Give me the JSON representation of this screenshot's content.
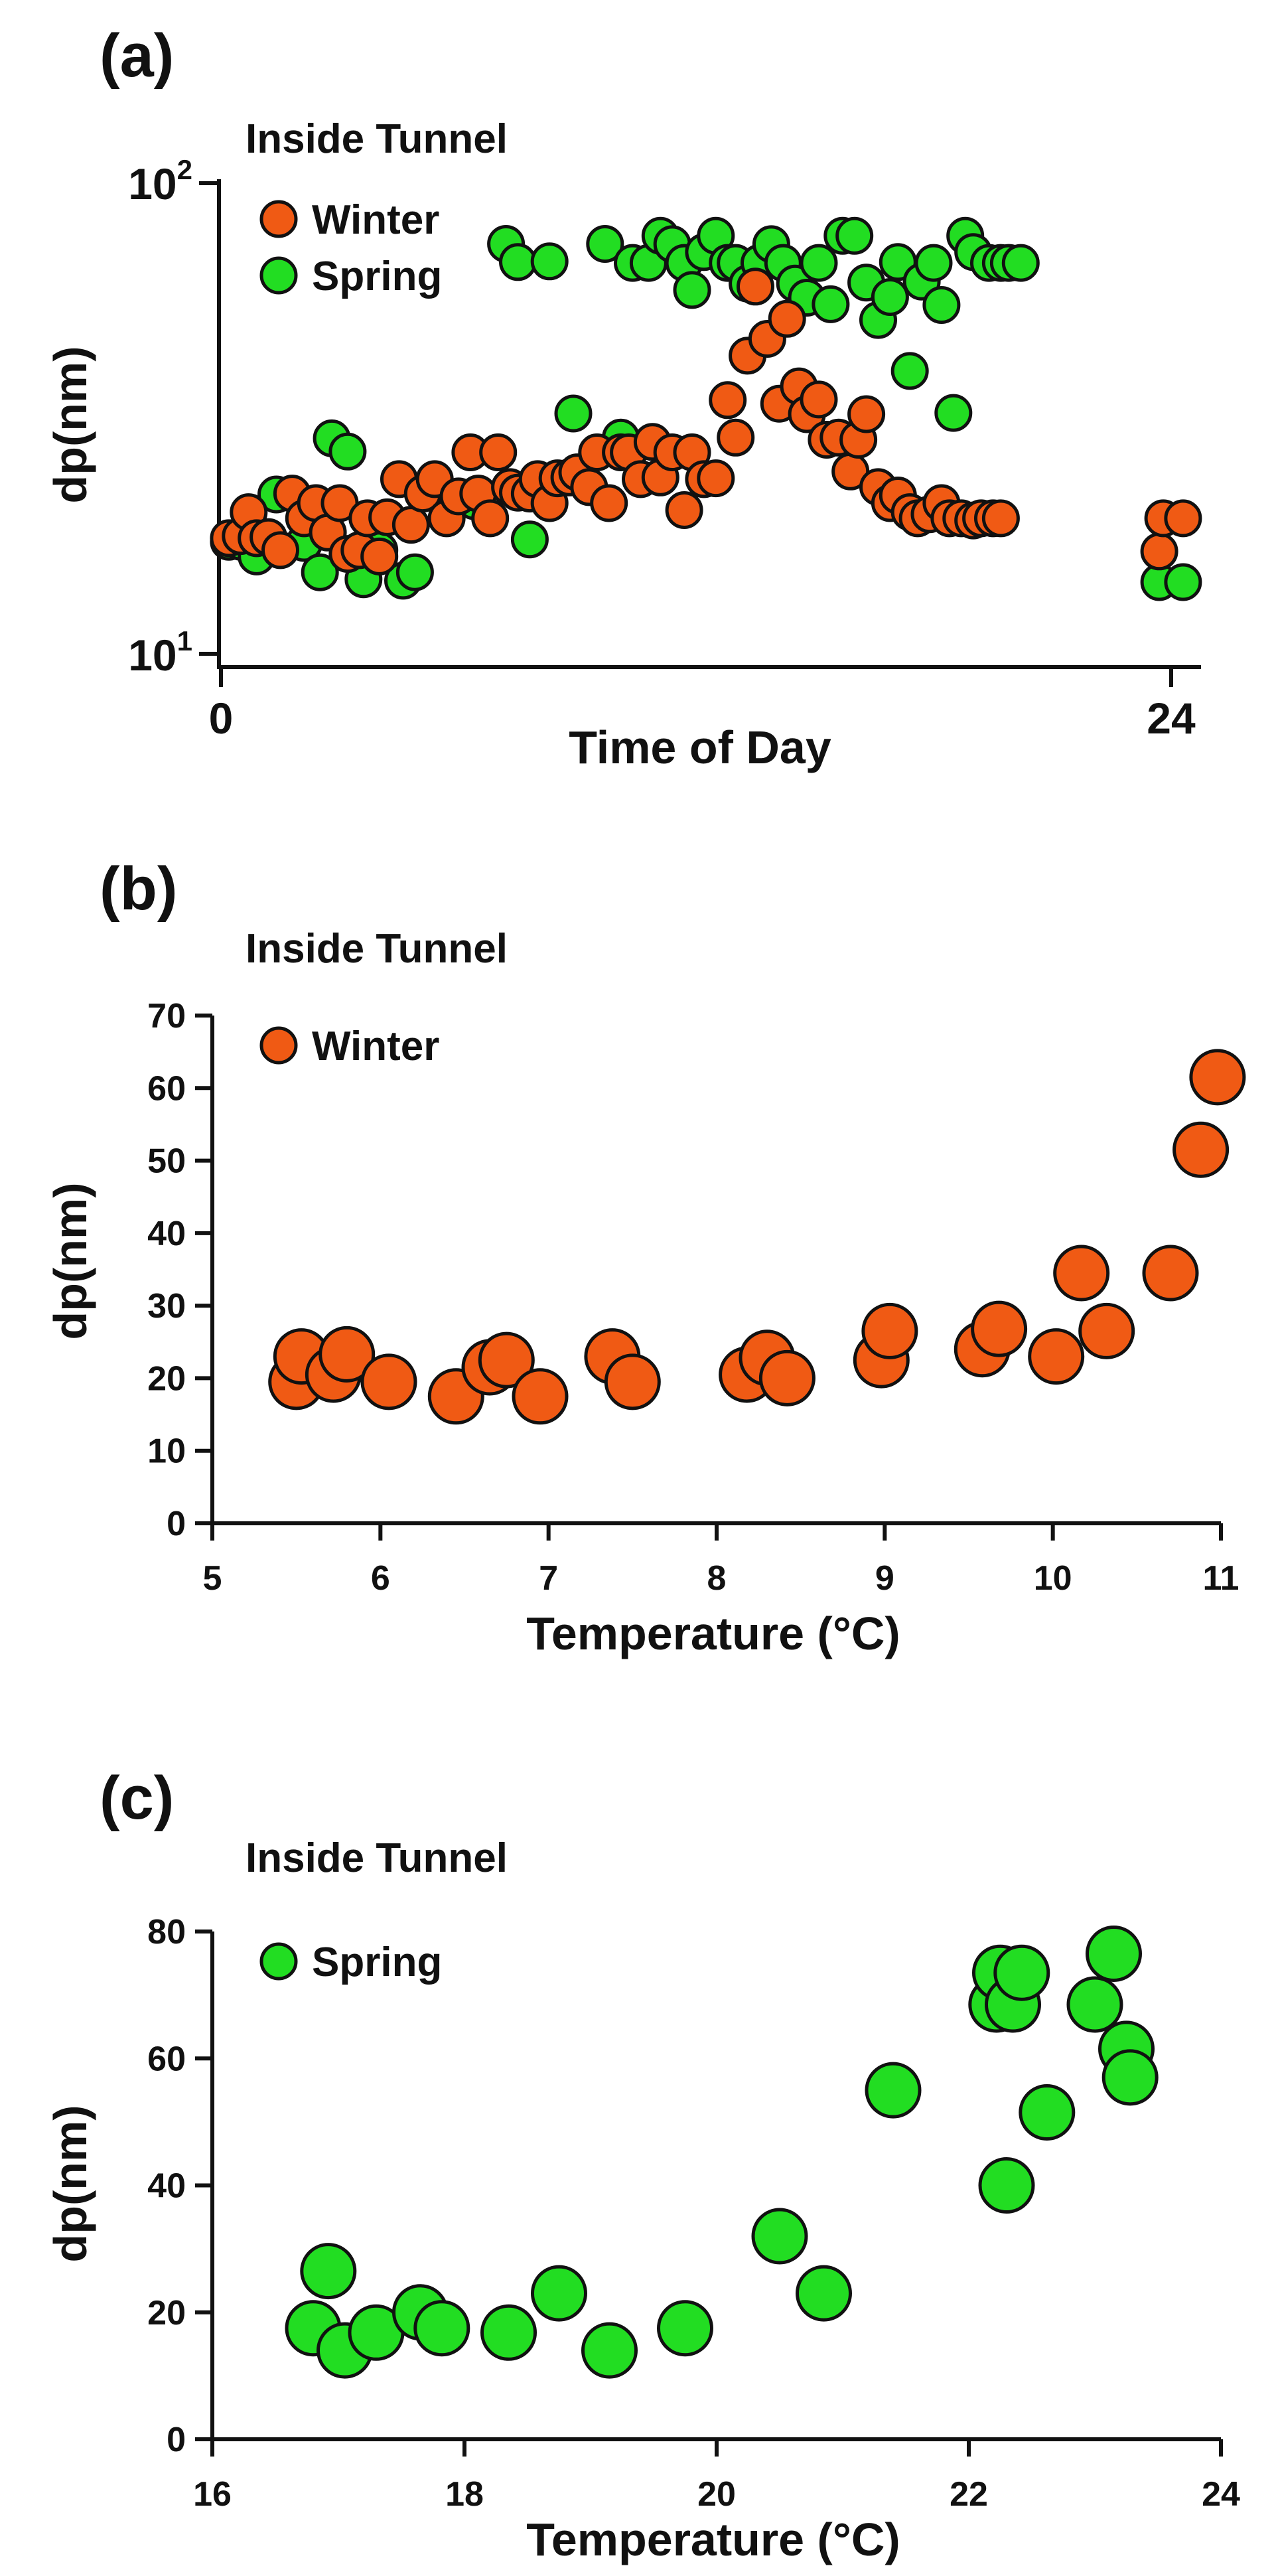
{
  "chart_data": [
    {
      "type": "scatter",
      "panel_label": "(a)",
      "title": "Inside Tunnel",
      "xlabel": "Time of Day",
      "ylabel": "dp(nm)",
      "xscale": "linear",
      "yscale": "log",
      "xlim": [
        0,
        24
      ],
      "ylim": [
        10,
        100
      ],
      "x_ticks": [
        0,
        24
      ],
      "y_ticks": [
        10,
        100
      ],
      "y_tick_labels": [
        {
          "base": "10",
          "exp": "1"
        },
        {
          "base": "10",
          "exp": "2"
        }
      ],
      "legend_position": "top-left",
      "series": [
        {
          "name": "Winter",
          "color": "#f05a14",
          "points": [
            [
              0.2,
              17.6
            ],
            [
              0.5,
              17.8
            ],
            [
              0.7,
              20
            ],
            [
              0.9,
              17.6
            ],
            [
              1.2,
              17.7
            ],
            [
              1.5,
              16.6
            ],
            [
              1.8,
              21.9
            ],
            [
              2.1,
              19.4
            ],
            [
              2.4,
              20.9
            ],
            [
              2.7,
              18.1
            ],
            [
              3.0,
              20.9
            ],
            [
              3.2,
              16.3
            ],
            [
              3.5,
              16.6
            ],
            [
              3.7,
              19.4
            ],
            [
              4.0,
              16.1
            ],
            [
              4.2,
              19.5
            ],
            [
              4.5,
              23.5
            ],
            [
              4.8,
              18.8
            ],
            [
              5.1,
              21.9
            ],
            [
              5.4,
              23.5
            ],
            [
              5.7,
              19.4
            ],
            [
              6.0,
              21.6
            ],
            [
              6.3,
              26.8
            ],
            [
              6.5,
              21.9
            ],
            [
              6.8,
              19.4
            ],
            [
              7.0,
              26.8
            ],
            [
              7.3,
              22.6
            ],
            [
              7.5,
              22
            ],
            [
              7.8,
              21.9
            ],
            [
              8.0,
              23.5
            ],
            [
              8.3,
              20.9
            ],
            [
              8.5,
              23.6
            ],
            [
              8.8,
              23.7
            ],
            [
              9.0,
              24.3
            ],
            [
              9.3,
              22.6
            ],
            [
              9.5,
              26.8
            ],
            [
              9.8,
              20.9
            ],
            [
              10.1,
              26.8
            ],
            [
              10.3,
              26.8
            ],
            [
              10.6,
              23.5
            ],
            [
              10.9,
              28.2
            ],
            [
              11.1,
              23.7
            ],
            [
              11.4,
              26.8
            ],
            [
              11.7,
              20.2
            ],
            [
              11.9,
              26.8
            ],
            [
              12.2,
              23.5
            ],
            [
              12.5,
              23.6
            ],
            [
              12.8,
              34.6
            ],
            [
              13.0,
              28.8
            ],
            [
              13.3,
              43
            ],
            [
              13.5,
              60.3
            ],
            [
              13.8,
              46.7
            ],
            [
              14.1,
              34
            ],
            [
              14.3,
              51.5
            ],
            [
              14.6,
              37
            ],
            [
              14.8,
              32.3
            ],
            [
              15.1,
              34.7
            ],
            [
              15.3,
              28.5
            ],
            [
              15.6,
              28.8
            ],
            [
              15.9,
              24.4
            ],
            [
              16.1,
              28.5
            ],
            [
              16.3,
              32.3
            ],
            [
              16.6,
              22.6
            ],
            [
              16.9,
              20.9
            ],
            [
              17.1,
              21.7
            ],
            [
              17.4,
              20
            ],
            [
              17.6,
              19.4
            ],
            [
              17.9,
              19.8
            ],
            [
              18.2,
              20.9
            ],
            [
              18.4,
              19.4
            ],
            [
              18.7,
              19.4
            ],
            [
              19.0,
              19.2
            ],
            [
              19.2,
              19.4
            ],
            [
              19.5,
              19.4
            ],
            [
              19.7,
              19.4
            ],
            [
              23.7,
              16.5
            ],
            [
              23.8,
              19.4
            ],
            [
              24.3,
              19.4
            ]
          ]
        },
        {
          "name": "Spring",
          "color": "#22dd22",
          "points": [
            [
              0.2,
              17.3
            ],
            [
              0.5,
              17.3
            ],
            [
              0.9,
              16.1
            ],
            [
              1.4,
              21.8
            ],
            [
              2.1,
              17.2
            ],
            [
              2.5,
              14.9
            ],
            [
              2.8,
              28.7
            ],
            [
              3.2,
              26.9
            ],
            [
              3.6,
              14.4
            ],
            [
              4.0,
              16.6
            ],
            [
              4.6,
              14.3
            ],
            [
              4.9,
              14.9
            ],
            [
              5.8,
              20.7
            ],
            [
              6.4,
              21.1
            ],
            [
              7.2,
              74.3
            ],
            [
              7.5,
              68
            ],
            [
              7.8,
              17.5
            ],
            [
              8.3,
              68.2
            ],
            [
              8.9,
              32.4
            ],
            [
              9.7,
              74.3
            ],
            [
              10.1,
              28.8
            ],
            [
              10.4,
              67.7
            ],
            [
              10.8,
              67.7
            ],
            [
              11.1,
              77.3
            ],
            [
              11.4,
              74.2
            ],
            [
              11.7,
              67.7
            ],
            [
              11.9,
              59.3
            ],
            [
              12.2,
              71.4
            ],
            [
              12.5,
              77.3
            ],
            [
              12.8,
              67.7
            ],
            [
              13.0,
              67.7
            ],
            [
              13.3,
              61.2
            ],
            [
              13.6,
              67.7
            ],
            [
              13.9,
              74.2
            ],
            [
              14.2,
              67.7
            ],
            [
              14.5,
              61.2
            ],
            [
              14.8,
              57.1
            ],
            [
              15.1,
              67.7
            ],
            [
              15.4,
              55.3
            ],
            [
              15.7,
              77.3
            ],
            [
              16.0,
              77.3
            ],
            [
              16.3,
              61.5
            ],
            [
              16.6,
              51.2
            ],
            [
              16.9,
              57.3
            ],
            [
              17.1,
              68
            ],
            [
              17.4,
              39.9
            ],
            [
              17.7,
              61.8
            ],
            [
              18.0,
              67.7
            ],
            [
              18.2,
              55.1
            ],
            [
              18.5,
              32.5
            ],
            [
              18.8,
              77.3
            ],
            [
              19.0,
              71.4
            ],
            [
              19.4,
              67.7
            ],
            [
              19.7,
              67.7
            ],
            [
              19.9,
              67.7
            ],
            [
              20.2,
              67.7
            ],
            [
              23.7,
              14.2
            ],
            [
              24.3,
              14.2
            ]
          ]
        }
      ]
    },
    {
      "type": "scatter",
      "panel_label": "(b)",
      "title": "Inside Tunnel",
      "xlabel": "Temperature (°C)",
      "ylabel": "dp(nm)",
      "xlim": [
        5,
        11
      ],
      "ylim": [
        0,
        70
      ],
      "x_ticks": [
        5,
        6,
        7,
        8,
        9,
        10,
        11
      ],
      "y_ticks": [
        0,
        10,
        20,
        30,
        40,
        50,
        60,
        70
      ],
      "legend_position": "top-left",
      "series": [
        {
          "name": "Winter",
          "color": "#f05a14",
          "points": [
            [
              5.5,
              19.5
            ],
            [
              5.53,
              23.0
            ],
            [
              5.72,
              20.5
            ],
            [
              5.8,
              23.3
            ],
            [
              6.05,
              19.5
            ],
            [
              6.45,
              17.5
            ],
            [
              6.65,
              21.5
            ],
            [
              6.75,
              22.5
            ],
            [
              6.95,
              17.5
            ],
            [
              7.38,
              23.0
            ],
            [
              7.5,
              19.5
            ],
            [
              8.18,
              20.5
            ],
            [
              8.3,
              22.8
            ],
            [
              8.42,
              20.0
            ],
            [
              8.98,
              22.5
            ],
            [
              9.03,
              26.5
            ],
            [
              9.58,
              24.0
            ],
            [
              9.68,
              26.8
            ],
            [
              10.02,
              23.0
            ],
            [
              10.17,
              34.5
            ],
            [
              10.32,
              26.5
            ],
            [
              10.7,
              34.5
            ],
            [
              10.88,
              51.5
            ],
            [
              10.98,
              61.5
            ]
          ]
        }
      ]
    },
    {
      "type": "scatter",
      "panel_label": "(c)",
      "title": "Inside Tunnel",
      "xlabel": "Temperature (°C)",
      "ylabel": "dp(nm)",
      "xlim": [
        16,
        24
      ],
      "ylim": [
        0,
        80
      ],
      "x_ticks": [
        16,
        18,
        20,
        22,
        24
      ],
      "y_ticks": [
        0,
        20,
        40,
        60,
        80
      ],
      "legend_position": "top-left",
      "series": [
        {
          "name": "Spring",
          "color": "#22dd22",
          "points": [
            [
              16.8,
              17.5
            ],
            [
              16.92,
              26.5
            ],
            [
              17.05,
              14.0
            ],
            [
              17.3,
              16.8
            ],
            [
              17.65,
              20.0
            ],
            [
              17.82,
              17.5
            ],
            [
              18.35,
              16.8
            ],
            [
              18.75,
              23.0
            ],
            [
              19.15,
              14.0
            ],
            [
              19.75,
              17.5
            ],
            [
              20.5,
              32.0
            ],
            [
              20.85,
              23.0
            ],
            [
              21.4,
              55.0
            ],
            [
              22.22,
              68.5
            ],
            [
              22.25,
              73.5
            ],
            [
              22.3,
              40.0
            ],
            [
              22.35,
              68.5
            ],
            [
              22.42,
              73.5
            ],
            [
              22.62,
              51.5
            ],
            [
              23.0,
              68.5
            ],
            [
              23.15,
              76.5
            ],
            [
              23.25,
              61.5
            ],
            [
              23.28,
              57.0
            ]
          ]
        }
      ]
    }
  ]
}
